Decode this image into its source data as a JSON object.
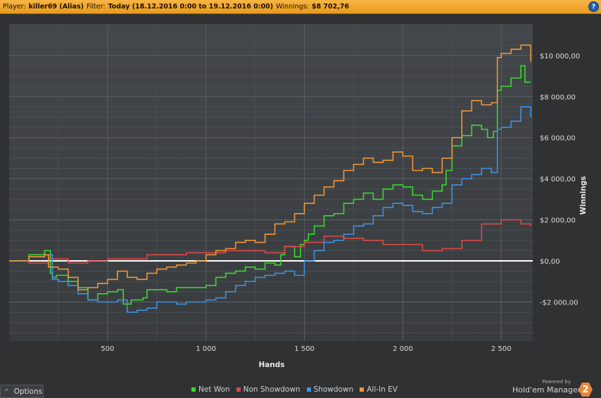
{
  "header": {
    "player_label": "Player:",
    "player_value": "killer69 (Alias)",
    "filter_label": "Filter:",
    "filter_value": "Today (18.12.2016 0:00 to 19.12.2016 0:00)",
    "winnings_label": "Winnings:",
    "winnings_value": "$8 702,76",
    "help_glyph": "?"
  },
  "footer": {
    "options_label": "Options",
    "options_arrow": "^",
    "powered_by": "Powered by",
    "brand_name": "Hold'em Manager",
    "brand_badge": "2"
  },
  "chart_data": {
    "type": "line",
    "xlabel": "Hands",
    "ylabel": "Winnings",
    "xlim": [
      0,
      2660
    ],
    "ylim": [
      -3900,
      11500
    ],
    "x_ticks": [
      500,
      1000,
      1500,
      2000,
      2500
    ],
    "x_tick_labels": [
      "500",
      "1 000",
      "1 500",
      "2 000",
      "2 500"
    ],
    "y_ticks": [
      10000,
      8000,
      6000,
      4000,
      2000,
      0,
      -2000
    ],
    "y_tick_labels": [
      "$10 000,00",
      "$8 000,00",
      "$6 000,00",
      "$4 000,00",
      "$2 000,00",
      "$0,00",
      "-$2 000,00"
    ],
    "grid": true,
    "legend_position": "bottom",
    "series": [
      {
        "name": "Net Won",
        "color": "#3ad832",
        "x": [
          0,
          100,
          180,
          210,
          220,
          240,
          300,
          350,
          400,
          450,
          500,
          550,
          580,
          620,
          680,
          700,
          750,
          800,
          850,
          900,
          950,
          1000,
          1050,
          1100,
          1150,
          1200,
          1250,
          1300,
          1350,
          1380,
          1400,
          1450,
          1480,
          1500,
          1520,
          1550,
          1600,
          1650,
          1700,
          1750,
          1800,
          1850,
          1900,
          1950,
          2000,
          2050,
          2100,
          2150,
          2200,
          2220,
          2250,
          2300,
          2350,
          2400,
          2430,
          2460,
          2480,
          2500,
          2550,
          2600,
          2620,
          2650
        ],
        "y": [
          0,
          300,
          500,
          -600,
          -800,
          -700,
          -1000,
          -1300,
          -1900,
          -1600,
          -1500,
          -1400,
          -2100,
          -1900,
          -1800,
          -1400,
          -1400,
          -1500,
          -1300,
          -1300,
          -1300,
          -1200,
          -800,
          -600,
          -500,
          -300,
          -400,
          -100,
          -200,
          300,
          700,
          200,
          800,
          1000,
          1300,
          1700,
          2200,
          2300,
          2800,
          3000,
          3300,
          3000,
          3500,
          3700,
          3600,
          3200,
          3000,
          3400,
          3700,
          4400,
          5600,
          6100,
          6600,
          6400,
          6000,
          6300,
          8300,
          8500,
          8900,
          9500,
          8700,
          8700
        ]
      },
      {
        "name": "Non Showdown",
        "color": "#dc4a48",
        "x": [
          0,
          100,
          200,
          300,
          400,
          500,
          600,
          700,
          800,
          900,
          1000,
          1100,
          1200,
          1300,
          1400,
          1500,
          1600,
          1700,
          1800,
          1900,
          2000,
          2100,
          2200,
          2300,
          2400,
          2500,
          2600,
          2650
        ],
        "y": [
          0,
          -100,
          100,
          -100,
          0,
          100,
          100,
          300,
          300,
          400,
          400,
          500,
          500,
          400,
          700,
          900,
          1200,
          1100,
          1000,
          800,
          800,
          500,
          600,
          1000,
          1800,
          2000,
          1800,
          1700
        ]
      },
      {
        "name": "Showdown",
        "color": "#3e92e0",
        "x": [
          0,
          100,
          180,
          220,
          250,
          300,
          350,
          400,
          450,
          500,
          550,
          600,
          650,
          700,
          750,
          800,
          850,
          900,
          950,
          1000,
          1050,
          1100,
          1150,
          1200,
          1250,
          1300,
          1350,
          1400,
          1450,
          1500,
          1550,
          1600,
          1650,
          1700,
          1750,
          1800,
          1850,
          1900,
          1950,
          2000,
          2050,
          2100,
          2150,
          2200,
          2250,
          2300,
          2350,
          2400,
          2450,
          2480,
          2500,
          2550,
          2600,
          2650
        ],
        "y": [
          0,
          200,
          300,
          -900,
          -1000,
          -1200,
          -1600,
          -1900,
          -2000,
          -2000,
          -1900,
          -2500,
          -2400,
          -2300,
          -2000,
          -2000,
          -2100,
          -2000,
          -2000,
          -1900,
          -1800,
          -1500,
          -1200,
          -1000,
          -800,
          -700,
          -600,
          -500,
          -700,
          0,
          500,
          900,
          1000,
          1300,
          1700,
          1800,
          2200,
          2600,
          2800,
          2700,
          2400,
          2300,
          2600,
          2800,
          3700,
          4000,
          4200,
          4500,
          4300,
          6400,
          6500,
          6800,
          7500,
          7000
        ]
      },
      {
        "name": "All-In EV",
        "color": "#f0963a",
        "x": [
          0,
          100,
          180,
          200,
          250,
          300,
          350,
          400,
          450,
          500,
          550,
          600,
          650,
          700,
          750,
          800,
          850,
          900,
          950,
          1000,
          1050,
          1100,
          1150,
          1200,
          1250,
          1300,
          1350,
          1400,
          1450,
          1500,
          1550,
          1600,
          1650,
          1700,
          1750,
          1800,
          1850,
          1900,
          1950,
          2000,
          2050,
          2100,
          2150,
          2200,
          2250,
          2300,
          2350,
          2400,
          2450,
          2480,
          2500,
          2550,
          2600,
          2650
        ],
        "y": [
          0,
          200,
          300,
          -300,
          -400,
          -800,
          -1400,
          -1300,
          -1100,
          -900,
          -500,
          -800,
          -900,
          -600,
          -400,
          -300,
          -200,
          -100,
          0,
          300,
          500,
          600,
          900,
          1000,
          900,
          1300,
          1800,
          1900,
          2300,
          2800,
          3200,
          3600,
          3900,
          4400,
          4700,
          5000,
          4800,
          4900,
          5300,
          5100,
          4400,
          4500,
          4300,
          5000,
          6000,
          7300,
          7800,
          7600,
          7700,
          9900,
          10100,
          10300,
          10500,
          9700
        ]
      }
    ]
  }
}
